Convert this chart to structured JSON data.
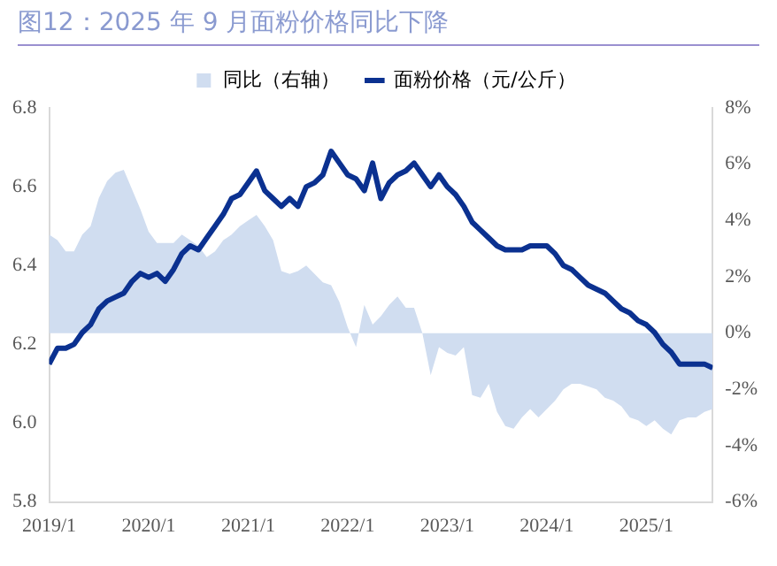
{
  "chart_data": {
    "type": "line",
    "title": "图12：2025 年 9 月面粉价格同比下降",
    "x": [
      "2019-01",
      "2019-02",
      "2019-03",
      "2019-04",
      "2019-05",
      "2019-06",
      "2019-07",
      "2019-08",
      "2019-09",
      "2019-10",
      "2019-11",
      "2019-12",
      "2020-01",
      "2020-02",
      "2020-03",
      "2020-04",
      "2020-05",
      "2020-06",
      "2020-07",
      "2020-08",
      "2020-09",
      "2020-10",
      "2020-11",
      "2020-12",
      "2021-01",
      "2021-02",
      "2021-03",
      "2021-04",
      "2021-05",
      "2021-06",
      "2021-07",
      "2021-08",
      "2021-09",
      "2021-10",
      "2021-11",
      "2021-12",
      "2022-01",
      "2022-02",
      "2022-03",
      "2022-04",
      "2022-05",
      "2022-06",
      "2022-07",
      "2022-08",
      "2022-09",
      "2022-10",
      "2022-11",
      "2022-12",
      "2023-01",
      "2023-02",
      "2023-03",
      "2023-04",
      "2023-05",
      "2023-06",
      "2023-07",
      "2023-08",
      "2023-09",
      "2023-10",
      "2023-11",
      "2023-12",
      "2024-01",
      "2024-02",
      "2024-03",
      "2024-04",
      "2024-05",
      "2024-06",
      "2024-07",
      "2024-08",
      "2024-09",
      "2024-10",
      "2024-11",
      "2024-12",
      "2025-01",
      "2025-02",
      "2025-03",
      "2025-04",
      "2025-05",
      "2025-06",
      "2025-07",
      "2025-08",
      "2025-09"
    ],
    "series": [
      {
        "name": "同比（右轴）",
        "type": "area",
        "axis": "y2",
        "color": "#d0ddf0",
        "values": [
          3.5,
          3.3,
          2.9,
          2.9,
          3.5,
          3.8,
          4.8,
          5.4,
          5.7,
          5.8,
          5.1,
          4.4,
          3.6,
          3.2,
          3.2,
          3.2,
          3.5,
          3.3,
          3.1,
          2.7,
          2.9,
          3.3,
          3.5,
          3.8,
          4.0,
          4.2,
          3.8,
          3.3,
          2.2,
          2.1,
          2.2,
          2.4,
          2.1,
          1.8,
          1.7,
          1.1,
          0.2,
          -0.5,
          1.0,
          0.3,
          0.6,
          1.0,
          1.3,
          0.9,
          0.9,
          0.0,
          -1.5,
          -0.5,
          -0.7,
          -0.8,
          -0.5,
          -2.2,
          -2.3,
          -1.8,
          -2.8,
          -3.3,
          -3.4,
          -3.0,
          -2.7,
          -3.0,
          -2.7,
          -2.4,
          -2.0,
          -1.8,
          -1.8,
          -1.9,
          -2.0,
          -2.3,
          -2.4,
          -2.6,
          -3.0,
          -3.1,
          -3.3,
          -3.1,
          -3.4,
          -3.6,
          -3.1,
          -3.0,
          -3.0,
          -2.8,
          -2.7
        ]
      },
      {
        "name": "面粉价格（元/公斤）",
        "type": "line",
        "color": "#0b3190",
        "values": [
          6.15,
          6.19,
          6.19,
          6.2,
          6.23,
          6.25,
          6.29,
          6.31,
          6.32,
          6.33,
          6.36,
          6.38,
          6.37,
          6.38,
          6.36,
          6.39,
          6.43,
          6.45,
          6.44,
          6.47,
          6.5,
          6.53,
          6.57,
          6.58,
          6.61,
          6.64,
          6.59,
          6.57,
          6.55,
          6.57,
          6.55,
          6.6,
          6.61,
          6.63,
          6.69,
          6.66,
          6.63,
          6.62,
          6.59,
          6.66,
          6.57,
          6.61,
          6.63,
          6.64,
          6.66,
          6.63,
          6.6,
          6.63,
          6.6,
          6.58,
          6.55,
          6.51,
          6.49,
          6.47,
          6.45,
          6.44,
          6.44,
          6.44,
          6.45,
          6.45,
          6.45,
          6.43,
          6.4,
          6.39,
          6.37,
          6.35,
          6.34,
          6.33,
          6.31,
          6.29,
          6.28,
          6.26,
          6.25,
          6.23,
          6.2,
          6.18,
          6.15,
          6.15,
          6.15,
          6.15,
          6.14
        ]
      }
    ],
    "xlim": [
      "2019-01",
      "2025-09"
    ],
    "xticks": [
      {
        "value": "2019-01",
        "label": "2019/1"
      },
      {
        "value": "2020-01",
        "label": "2020/1"
      },
      {
        "value": "2021-01",
        "label": "2021/1"
      },
      {
        "value": "2022-01",
        "label": "2022/1"
      },
      {
        "value": "2023-01",
        "label": "2023/1"
      },
      {
        "value": "2024-01",
        "label": "2024/1"
      },
      {
        "value": "2025-01",
        "label": "2025/1"
      }
    ],
    "ylim": [
      5.8,
      6.8
    ],
    "yticks": [
      {
        "value": 5.8,
        "label": "5.8"
      },
      {
        "value": 6.0,
        "label": "6.0"
      },
      {
        "value": 6.2,
        "label": "6.2"
      },
      {
        "value": 6.4,
        "label": "6.4"
      },
      {
        "value": 6.6,
        "label": "6.6"
      },
      {
        "value": 6.8,
        "label": "6.8"
      }
    ],
    "y2lim": [
      -6,
      8
    ],
    "y2ticks": [
      {
        "value": -6,
        "label": "-6%"
      },
      {
        "value": -4,
        "label": "-4%"
      },
      {
        "value": -2,
        "label": "-2%"
      },
      {
        "value": 0,
        "label": "0%"
      },
      {
        "value": 2,
        "label": "2%"
      },
      {
        "value": 4,
        "label": "4%"
      },
      {
        "value": 6,
        "label": "6%"
      },
      {
        "value": 8,
        "label": "8%"
      }
    ],
    "grid": false,
    "legend": "top",
    "marker": "none"
  }
}
